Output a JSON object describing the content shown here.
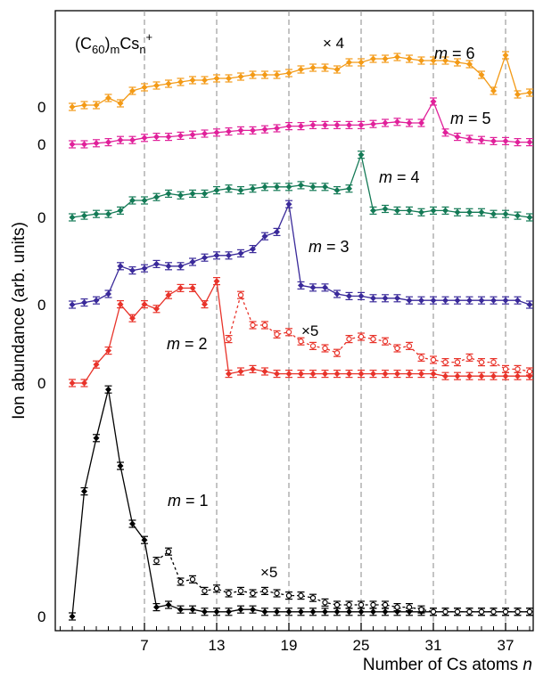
{
  "chart_data": {
    "type": "line",
    "title_main": "(C",
    "title_sub1": "60",
    "title_mid": ")",
    "title_sub2": "m",
    "title_cs": "Cs",
    "title_sub3": "n",
    "title_sup": "+",
    "xlabel": "Number of Cs atoms ",
    "xlabel_var": "n",
    "ylabel": "Ion abundance (arb. units)",
    "xlim": [
      -1,
      40
    ],
    "x_ticks": [
      7,
      13,
      19,
      25,
      31,
      37
    ],
    "zero_label": "0",
    "colors": {
      "m1": "#000000",
      "m2": "#e8332a",
      "m3": "#3a2a9a",
      "m4": "#147a56",
      "m5": "#e0209a",
      "m6": "#f39a16"
    },
    "series": [
      {
        "name": "m = 1",
        "label_m": "m",
        "label_eq": " = 1",
        "color": "#000000",
        "baseline": 0,
        "x": [
          1,
          2,
          3,
          4,
          5,
          6,
          7,
          8,
          9,
          10,
          11,
          12,
          13,
          14,
          15,
          16,
          17,
          18,
          19,
          20,
          21,
          22,
          23,
          24,
          25,
          26,
          27,
          28,
          29,
          30,
          31,
          32,
          33,
          34,
          35,
          36,
          37,
          38,
          39
        ],
        "y": [
          0,
          54,
          77,
          98,
          65,
          40,
          33,
          4,
          5,
          3,
          3,
          2,
          2,
          2,
          3,
          3,
          2,
          2,
          2,
          2,
          2,
          2,
          2,
          2,
          2,
          2,
          2,
          2,
          2,
          2,
          2,
          2,
          2,
          2,
          2,
          2,
          2,
          2,
          2
        ],
        "scaled": {
          "label": "×5",
          "factor": 5,
          "x": [
            8,
            9,
            10,
            11,
            12,
            13,
            14,
            15,
            16,
            17,
            18,
            19,
            20,
            21,
            22,
            23,
            24,
            25,
            26,
            27,
            28,
            29,
            30,
            31,
            32,
            33,
            34,
            35,
            36,
            37,
            38,
            39
          ],
          "y": [
            24,
            28,
            15,
            16,
            11,
            12,
            10,
            11,
            10,
            11,
            10,
            9,
            9,
            8,
            6,
            5,
            5,
            5,
            5,
            5,
            4,
            4,
            3,
            2,
            2,
            2,
            2,
            2,
            2,
            2,
            2,
            2
          ]
        }
      },
      {
        "name": "m = 2",
        "label_m": "m",
        "label_eq": " = 2",
        "color": "#e8332a",
        "baseline": 0,
        "x": [
          1,
          2,
          3,
          4,
          5,
          6,
          7,
          8,
          9,
          10,
          11,
          12,
          13,
          14,
          15,
          16,
          17,
          18,
          19,
          20,
          21,
          22,
          23,
          24,
          25,
          26,
          27,
          28,
          29,
          30,
          31,
          32,
          33,
          34,
          35,
          36,
          37,
          38,
          39
        ],
        "y": [
          0,
          0,
          8,
          14,
          34,
          28,
          34,
          32,
          38,
          41,
          41,
          34,
          44,
          4,
          5,
          6,
          5,
          4,
          4,
          4,
          4,
          4,
          4,
          4,
          4,
          4,
          4,
          4,
          4,
          4,
          4,
          3,
          3,
          3,
          3,
          3,
          3,
          3,
          3
        ],
        "scaled": {
          "label": "×5",
          "factor": 5,
          "x": [
            14,
            15,
            16,
            17,
            18,
            19,
            20,
            21,
            22,
            23,
            24,
            25,
            26,
            27,
            28,
            29,
            30,
            31,
            32,
            33,
            34,
            35,
            36,
            37,
            38,
            39
          ],
          "y": [
            19,
            38,
            25,
            25,
            21,
            22,
            18,
            16,
            15,
            13,
            19,
            20,
            19,
            18,
            15,
            16,
            11,
            10,
            9,
            9,
            11,
            9,
            9,
            6,
            6,
            5
          ]
        }
      },
      {
        "name": "m = 3",
        "label_m": "m",
        "label_eq": " = 3",
        "color": "#3a2a9a",
        "baseline": 0,
        "x": [
          1,
          2,
          3,
          4,
          5,
          6,
          7,
          8,
          9,
          10,
          11,
          12,
          13,
          14,
          15,
          16,
          17,
          18,
          19,
          20,
          21,
          22,
          23,
          24,
          25,
          26,
          27,
          28,
          29,
          30,
          31,
          32,
          33,
          34,
          35,
          36,
          37,
          38,
          39
        ],
        "y": [
          0,
          1,
          2,
          5,
          18,
          16,
          17,
          19,
          18,
          18,
          20,
          22,
          23,
          23,
          24,
          26,
          32,
          34,
          47,
          9,
          8,
          8,
          5,
          4,
          4,
          3,
          3,
          3,
          2,
          2,
          2,
          2,
          2,
          2,
          2,
          2,
          2,
          2,
          0
        ]
      },
      {
        "name": "m = 4",
        "label_m": "m",
        "label_eq": " = 4",
        "color": "#147a56",
        "baseline": 0,
        "x": [
          1,
          2,
          3,
          4,
          5,
          6,
          7,
          8,
          9,
          10,
          11,
          12,
          13,
          14,
          15,
          16,
          17,
          18,
          19,
          20,
          21,
          22,
          23,
          24,
          25,
          26,
          27,
          28,
          29,
          30,
          31,
          32,
          33,
          34,
          35,
          36,
          37,
          38,
          39
        ],
        "y": [
          0,
          1,
          2,
          2,
          4,
          10,
          10,
          12,
          14,
          13,
          14,
          14,
          16,
          17,
          16,
          17,
          18,
          18,
          18,
          19,
          18,
          18,
          16,
          17,
          37,
          4,
          5,
          4,
          4,
          3,
          4,
          4,
          3,
          3,
          3,
          2,
          2,
          1,
          0
        ]
      },
      {
        "name": "m = 5",
        "label_m": "m",
        "label_eq": " = 5",
        "color": "#e0209a",
        "baseline": 0,
        "x": [
          1,
          2,
          3,
          4,
          5,
          6,
          7,
          8,
          9,
          10,
          11,
          12,
          13,
          14,
          15,
          16,
          17,
          18,
          19,
          20,
          21,
          22,
          23,
          24,
          25,
          26,
          27,
          28,
          29,
          30,
          31,
          32,
          33,
          34,
          35,
          36,
          37,
          38,
          39
        ],
        "y": [
          0,
          0,
          1,
          2,
          4,
          4,
          6,
          7,
          7,
          8,
          9,
          10,
          11,
          12,
          13,
          13,
          14,
          15,
          17,
          17,
          18,
          18,
          18,
          18,
          18,
          19,
          20,
          21,
          20,
          20,
          40,
          11,
          7,
          5,
          4,
          3,
          3,
          2,
          2
        ]
      },
      {
        "name": "m = 6",
        "label_m": "m",
        "label_eq": " = 6",
        "color": "#f39a16",
        "baseline": 0,
        "label_note": "× 4",
        "x": [
          1,
          2,
          3,
          4,
          5,
          6,
          7,
          8,
          9,
          10,
          11,
          12,
          13,
          14,
          15,
          16,
          17,
          18,
          19,
          20,
          21,
          22,
          23,
          24,
          25,
          26,
          27,
          28,
          29,
          30,
          31,
          32,
          33,
          34,
          35,
          36,
          37,
          38,
          39
        ],
        "y": [
          0,
          1,
          1,
          5,
          2,
          9,
          11,
          12,
          13,
          14,
          15,
          15,
          16,
          16,
          17,
          18,
          18,
          18,
          19,
          21,
          22,
          22,
          21,
          25,
          25,
          27,
          27,
          28,
          27,
          26,
          26,
          26,
          25,
          24,
          18,
          9,
          29,
          7,
          8
        ]
      }
    ]
  }
}
